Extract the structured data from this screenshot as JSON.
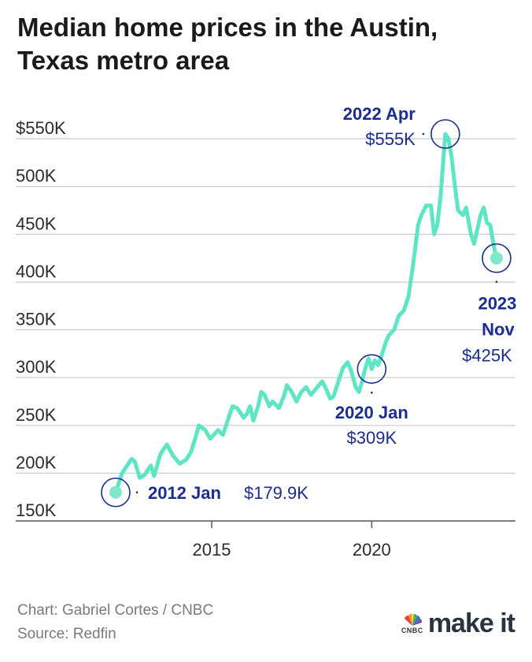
{
  "title_lines": [
    "Median home prices in the Austin,",
    "Texas metro area"
  ],
  "footer": {
    "credit": "Chart: Gabriel Cortes / CNBC",
    "source": "Source: Redfin"
  },
  "logo": {
    "brand": "CNBC",
    "text": "make it",
    "icon": "nbc-peacock-icon"
  },
  "colors": {
    "line": "#5ee6c4",
    "annotation": "#1b2d8f",
    "marker_fill": "#7ee8cc"
  },
  "chart_data": {
    "type": "line",
    "title": "Median home prices in the Austin, Texas metro area",
    "xlabel": "",
    "ylabel": "",
    "ylim": [
      150000,
      570000
    ],
    "xlim": [
      2011,
      2024.7
    ],
    "grid": true,
    "y_ticks": [
      150000,
      200000,
      250000,
      300000,
      350000,
      400000,
      450000,
      500000,
      550000
    ],
    "y_tick_labels": [
      "150K",
      "200K",
      "250K",
      "300K",
      "350K",
      "400K",
      "450K",
      "500K",
      "$550K"
    ],
    "x_ticks": [
      2015,
      2020
    ],
    "x_tick_labels": [
      "2015",
      "2020"
    ],
    "series": [
      {
        "values": [
          [
            2012.0,
            179900
          ],
          [
            2012.2,
            200000
          ],
          [
            2012.4,
            210000
          ],
          [
            2012.5,
            215000
          ],
          [
            2012.6,
            212000
          ],
          [
            2012.75,
            195000
          ],
          [
            2012.9,
            198000
          ],
          [
            2013.1,
            208000
          ],
          [
            2013.2,
            197000
          ],
          [
            2013.4,
            220000
          ],
          [
            2013.6,
            230000
          ],
          [
            2013.8,
            218000
          ],
          [
            2014.0,
            210000
          ],
          [
            2014.2,
            214000
          ],
          [
            2014.35,
            222000
          ],
          [
            2014.5,
            238000
          ],
          [
            2014.6,
            250000
          ],
          [
            2014.8,
            245000
          ],
          [
            2014.95,
            236000
          ],
          [
            2015.2,
            245000
          ],
          [
            2015.35,
            240000
          ],
          [
            2015.5,
            255000
          ],
          [
            2015.65,
            270000
          ],
          [
            2015.8,
            268000
          ],
          [
            2016.0,
            258000
          ],
          [
            2016.1,
            262000
          ],
          [
            2016.2,
            270000
          ],
          [
            2016.3,
            255000
          ],
          [
            2016.45,
            270000
          ],
          [
            2016.55,
            285000
          ],
          [
            2016.65,
            282000
          ],
          [
            2016.8,
            270000
          ],
          [
            2016.9,
            275000
          ],
          [
            2017.1,
            268000
          ],
          [
            2017.25,
            280000
          ],
          [
            2017.35,
            292000
          ],
          [
            2017.5,
            285000
          ],
          [
            2017.65,
            275000
          ],
          [
            2017.8,
            285000
          ],
          [
            2017.95,
            290000
          ],
          [
            2018.1,
            282000
          ],
          [
            2018.25,
            288000
          ],
          [
            2018.45,
            296000
          ],
          [
            2018.55,
            290000
          ],
          [
            2018.7,
            278000
          ],
          [
            2018.8,
            280000
          ],
          [
            2019.0,
            300000
          ],
          [
            2019.1,
            310000
          ],
          [
            2019.25,
            316000
          ],
          [
            2019.35,
            308000
          ],
          [
            2019.5,
            290000
          ],
          [
            2019.6,
            285000
          ],
          [
            2019.7,
            296000
          ],
          [
            2019.8,
            310000
          ],
          [
            2019.9,
            320000
          ],
          [
            2020.0,
            309000
          ],
          [
            2020.1,
            318000
          ],
          [
            2020.2,
            313000
          ],
          [
            2020.3,
            322000
          ],
          [
            2020.45,
            338000
          ],
          [
            2020.55,
            345000
          ],
          [
            2020.7,
            350000
          ],
          [
            2020.85,
            365000
          ],
          [
            2021.0,
            370000
          ],
          [
            2021.15,
            385000
          ],
          [
            2021.3,
            420000
          ],
          [
            2021.45,
            460000
          ],
          [
            2021.55,
            470000
          ],
          [
            2021.7,
            480000
          ],
          [
            2021.85,
            480000
          ],
          [
            2021.95,
            450000
          ],
          [
            2022.05,
            460000
          ],
          [
            2022.15,
            490000
          ],
          [
            2022.3,
            555000
          ],
          [
            2022.4,
            550000
          ],
          [
            2022.5,
            530000
          ],
          [
            2022.6,
            500000
          ],
          [
            2022.7,
            475000
          ],
          [
            2022.85,
            470000
          ],
          [
            2022.95,
            478000
          ],
          [
            2023.1,
            450000
          ],
          [
            2023.2,
            440000
          ],
          [
            2023.3,
            455000
          ],
          [
            2023.4,
            470000
          ],
          [
            2023.5,
            478000
          ],
          [
            2023.6,
            462000
          ],
          [
            2023.7,
            460000
          ],
          [
            2023.8,
            440000
          ],
          [
            2023.9,
            425000
          ]
        ]
      }
    ],
    "annotations": [
      {
        "x": 2012.0,
        "y": 179900,
        "label": "2012 Jan",
        "value": "$179.9K"
      },
      {
        "x": 2020.0,
        "y": 309000,
        "label": "2020 Jan",
        "value": "$309K"
      },
      {
        "x": 2022.3,
        "y": 555000,
        "label": "2022 Apr",
        "value": "$555K"
      },
      {
        "x": 2023.9,
        "y": 425000,
        "label_lines": [
          "2023",
          "Nov"
        ],
        "value": "$425K"
      }
    ]
  }
}
